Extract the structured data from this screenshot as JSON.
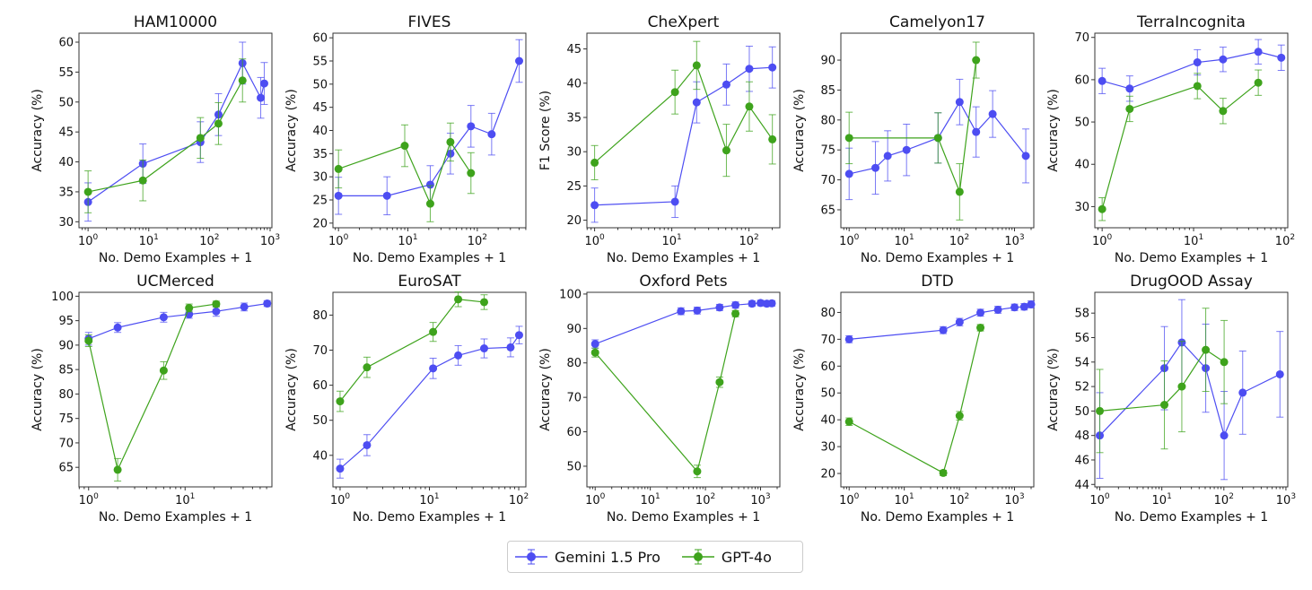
{
  "colors": {
    "gemini": "#4d4df2",
    "gpt": "#3ea31c"
  },
  "legend": {
    "placement": "bottom-center",
    "items": [
      {
        "label": "Gemini 1.5 Pro",
        "key": "gemini"
      },
      {
        "label": "GPT-4o",
        "key": "gpt"
      }
    ]
  },
  "chart_data": [
    {
      "type": "line",
      "title": "HAM10000",
      "xlabel": "No. Demo Examples + 1",
      "ylabel": "Accuracy (%)",
      "xscale": "log",
      "xlim_log10": [
        -0.15,
        3.03
      ],
      "xtick_exponents": [
        0,
        1,
        2,
        3
      ],
      "ylim": [
        29,
        61.5
      ],
      "yticks": [
        30,
        35,
        40,
        45,
        50,
        55,
        60
      ],
      "series": [
        {
          "name": "Gemini 1.5 Pro",
          "key": "gemini",
          "x": [
            1,
            8,
            71,
            141,
            351,
            701,
            801
          ],
          "y": [
            33.3,
            39.7,
            43.3,
            47.9,
            56.5,
            50.7,
            53.1
          ],
          "err": [
            3.2,
            3.3,
            3.4,
            3.5,
            3.5,
            3.4,
            3.5
          ]
        },
        {
          "name": "GPT-4o",
          "key": "gpt",
          "x": [
            1,
            8,
            71,
            141,
            351
          ],
          "y": [
            35,
            36.9,
            44,
            46.4,
            53.6
          ],
          "err": [
            3.5,
            3.4,
            3.4,
            3.5,
            3.6
          ]
        }
      ]
    },
    {
      "type": "line",
      "title": "FIVES",
      "xlabel": "No. Demo Examples + 1",
      "ylabel": "Accuracy (%)",
      "xscale": "log",
      "xlim_log10": [
        -0.08,
        2.7
      ],
      "xtick_exponents": [
        0,
        1,
        2
      ],
      "ylim": [
        19,
        61
      ],
      "yticks": [
        20,
        25,
        30,
        35,
        40,
        45,
        50,
        55,
        60
      ],
      "series": [
        {
          "name": "Gemini 1.5 Pro",
          "key": "gemini",
          "x": [
            1,
            5,
            21,
            41,
            81,
            161,
            401
          ],
          "y": [
            25.9,
            25.9,
            28.3,
            35,
            40.9,
            39.2,
            55
          ],
          "err": [
            4,
            4.1,
            4.1,
            4.4,
            4.5,
            4.5,
            4.6
          ]
        },
        {
          "name": "GPT-4o",
          "key": "gpt",
          "x": [
            1,
            9,
            21,
            41,
            81
          ],
          "y": [
            31.7,
            36.7,
            24.2,
            37.5,
            30.8
          ],
          "err": [
            4.1,
            4.5,
            3.9,
            4.1,
            4.4
          ]
        }
      ]
    },
    {
      "type": "line",
      "title": "CheXpert",
      "xlabel": "No. Demo Examples + 1",
      "ylabel": "F1 Score (%)",
      "xscale": "log",
      "xlim_log10": [
        -0.1,
        2.4
      ],
      "xtick_exponents": [
        0,
        1,
        2
      ],
      "ylim": [
        18.9,
        47.3
      ],
      "yticks": [
        20,
        25,
        30,
        35,
        40,
        45
      ],
      "series": [
        {
          "name": "Gemini 1.5 Pro",
          "key": "gemini",
          "x": [
            1,
            11,
            21,
            51,
            101,
            201
          ],
          "y": [
            22.2,
            22.7,
            37.2,
            39.8,
            42.1,
            42.3
          ],
          "err": [
            2.5,
            2.3,
            3,
            3,
            3.3,
            3
          ]
        },
        {
          "name": "GPT-4o",
          "key": "gpt",
          "x": [
            1,
            11,
            21,
            51,
            101,
            201
          ],
          "y": [
            28.4,
            38.7,
            42.6,
            30.2,
            36.6,
            31.8
          ],
          "err": [
            2.5,
            3.2,
            3.5,
            3.8,
            3.6,
            3.6
          ]
        }
      ]
    },
    {
      "type": "line",
      "title": "Camelyon17",
      "xlabel": "No. Demo Examples + 1",
      "ylabel": "Accuracy (%)",
      "xscale": "log",
      "xlim_log10": [
        -0.15,
        3.35
      ],
      "xtick_exponents": [
        0,
        1,
        2,
        3
      ],
      "ylim": [
        62,
        94.5
      ],
      "yticks": [
        65,
        70,
        75,
        80,
        85,
        90
      ],
      "series": [
        {
          "name": "Gemini 1.5 Pro",
          "key": "gemini",
          "x": [
            1,
            3,
            5,
            11,
            41,
            101,
            201,
            401,
            1601
          ],
          "y": [
            71,
            72,
            74,
            75,
            77,
            83,
            78,
            81,
            74
          ],
          "err": [
            4.3,
            4.4,
            4.2,
            4.3,
            4.2,
            3.8,
            4.2,
            3.9,
            4.5
          ]
        },
        {
          "name": "GPT-4o",
          "key": "gpt",
          "x": [
            1,
            41,
            101,
            201
          ],
          "y": [
            77,
            77,
            68,
            90
          ],
          "err": [
            4.3,
            4.2,
            4.7,
            3
          ]
        }
      ]
    },
    {
      "type": "line",
      "title": "TerraIncognita",
      "xlabel": "No. Demo Examples + 1",
      "ylabel": "Accuracy (%)",
      "xscale": "log",
      "xlim_log10": [
        -0.08,
        2.03
      ],
      "xtick_exponents": [
        0,
        1,
        2
      ],
      "ylim": [
        25,
        71
      ],
      "yticks": [
        30,
        40,
        50,
        60,
        70
      ],
      "series": [
        {
          "name": "Gemini 1.5 Pro",
          "key": "gemini",
          "x": [
            1,
            2,
            11,
            21,
            51,
            91
          ],
          "y": [
            59.7,
            57.9,
            64.1,
            64.8,
            66.6,
            65.2
          ],
          "err": [
            3,
            3,
            3,
            2.9,
            2.9,
            3
          ]
        },
        {
          "name": "GPT-4o",
          "key": "gpt",
          "x": [
            1,
            2,
            11,
            21,
            51
          ],
          "y": [
            29.4,
            53.1,
            58.5,
            52.6,
            59.3
          ],
          "err": [
            2.7,
            3,
            3,
            3,
            3
          ]
        }
      ]
    },
    {
      "type": "line",
      "title": "UCMerced",
      "xlabel": "No. Demo Examples + 1",
      "ylabel": "Accuracy (%)",
      "xscale": "log",
      "xlim_log10": [
        -0.1,
        1.9
      ],
      "xtick_exponents": [
        0,
        1
      ],
      "ylim": [
        61,
        100.8
      ],
      "yticks": [
        65,
        70,
        75,
        80,
        85,
        90,
        95,
        100
      ],
      "series": [
        {
          "name": "Gemini 1.5 Pro",
          "key": "gemini",
          "x": [
            1,
            2,
            6,
            11,
            21,
            41,
            71
          ],
          "y": [
            91.3,
            93.6,
            95.7,
            96.3,
            96.9,
            97.8,
            98.5
          ],
          "err": [
            1.3,
            1,
            1,
            0.8,
            1,
            0.8,
            0.6
          ]
        },
        {
          "name": "GPT-4o",
          "key": "gpt",
          "x": [
            1,
            2,
            6,
            11,
            21
          ],
          "y": [
            90.9,
            64.5,
            84.8,
            97.6,
            98.4
          ],
          "err": [
            1.2,
            2.3,
            1.8,
            0.8,
            0.6
          ]
        }
      ]
    },
    {
      "type": "line",
      "title": "EuroSAT",
      "xlabel": "No. Demo Examples + 1",
      "ylabel": "Accuracy (%)",
      "xscale": "log",
      "xlim_log10": [
        -0.08,
        2.08
      ],
      "xtick_exponents": [
        0,
        1,
        2
      ],
      "ylim": [
        31,
        86.5
      ],
      "yticks": [
        40,
        50,
        60,
        70,
        80
      ],
      "series": [
        {
          "name": "Gemini 1.5 Pro",
          "key": "gemini",
          "x": [
            1,
            2,
            11,
            21,
            41,
            81,
            101
          ],
          "y": [
            36.2,
            42.9,
            64.8,
            68.5,
            70.5,
            70.8,
            74.3
          ],
          "err": [
            2.7,
            3,
            2.9,
            2.8,
            2.7,
            2.7,
            2.5
          ]
        },
        {
          "name": "GPT-4o",
          "key": "gpt",
          "x": [
            1,
            2,
            11,
            21,
            41
          ],
          "y": [
            55.4,
            65.1,
            75.2,
            84.5,
            83.7
          ],
          "err": [
            2.9,
            2.9,
            2.7,
            2.1,
            2.1
          ]
        }
      ]
    },
    {
      "type": "line",
      "title": "Oxford Pets",
      "xlabel": "No. Demo Examples + 1",
      "ylabel": "Accuracy (%)",
      "xscale": "log",
      "xlim_log10": [
        -0.15,
        3.35
      ],
      "xtick_exponents": [
        0,
        1,
        2,
        3
      ],
      "ylim": [
        44,
        100.5
      ],
      "yticks": [
        50,
        60,
        70,
        80,
        90,
        100
      ],
      "series": [
        {
          "name": "Gemini 1.5 Pro",
          "key": "gemini",
          "x": [
            1,
            36,
            71,
            181,
            351,
            701,
            1001,
            1301,
            1601
          ],
          "y": [
            85.5,
            95,
            95.2,
            96.1,
            96.8,
            97.2,
            97.4,
            97.2,
            97.3
          ],
          "err": [
            1.2,
            1,
            1,
            0.9,
            0.9,
            0.8,
            0.8,
            0.8,
            0.8
          ]
        },
        {
          "name": "GPT-4o",
          "key": "gpt",
          "x": [
            1,
            71,
            181,
            351
          ],
          "y": [
            83,
            48.5,
            74.4,
            94.3
          ],
          "err": [
            1.3,
            1.8,
            1.5,
            0.9
          ]
        }
      ]
    },
    {
      "type": "line",
      "title": "DTD",
      "xlabel": "No. Demo Examples + 1",
      "ylabel": "Accuracy (%)",
      "xscale": "log",
      "xlim_log10": [
        -0.15,
        3.35
      ],
      "xtick_exponents": [
        0,
        1,
        2,
        3
      ],
      "ylim": [
        15,
        87.5
      ],
      "yticks": [
        20,
        30,
        40,
        50,
        60,
        70,
        80
      ],
      "series": [
        {
          "name": "Gemini 1.5 Pro",
          "key": "gemini",
          "x": [
            1,
            51,
            101,
            241,
            501,
            1001,
            1501,
            2001
          ],
          "y": [
            70,
            73.4,
            76.4,
            79.9,
            81,
            81.9,
            82.1,
            83
          ],
          "err": [
            1.3,
            1.3,
            1.4,
            1.3,
            1.3,
            1.2,
            1.2,
            1.3
          ]
        },
        {
          "name": "GPT-4o",
          "key": "gpt",
          "x": [
            1,
            51,
            101,
            241
          ],
          "y": [
            39.3,
            20.2,
            41.5,
            74.3
          ],
          "err": [
            1.4,
            1,
            1.6,
            1.2
          ]
        }
      ]
    },
    {
      "type": "line",
      "title": "DrugOOD Assay",
      "xlabel": "No. Demo Examples + 1",
      "ylabel": "Accuracy (%)",
      "xscale": "log",
      "xlim_log10": [
        -0.08,
        3.03
      ],
      "xtick_exponents": [
        0,
        1,
        2,
        3
      ],
      "ylim": [
        43.8,
        59.7
      ],
      "yticks": [
        44,
        46,
        48,
        50,
        52,
        54,
        56,
        58
      ],
      "series": [
        {
          "name": "Gemini 1.5 Pro",
          "key": "gemini",
          "x": [
            1,
            11,
            21,
            51,
            101,
            201,
            801
          ],
          "y": [
            48,
            53.5,
            55.6,
            53.5,
            48,
            51.5,
            53
          ],
          "err": [
            3.5,
            3.4,
            3.5,
            3.6,
            3.6,
            3.4,
            3.5
          ]
        },
        {
          "name": "GPT-4o",
          "key": "gpt",
          "x": [
            1,
            11,
            21,
            51,
            101
          ],
          "y": [
            50,
            50.5,
            52,
            55,
            54
          ],
          "err": [
            3.4,
            3.6,
            3.7,
            3.4,
            3.4
          ]
        }
      ]
    }
  ]
}
